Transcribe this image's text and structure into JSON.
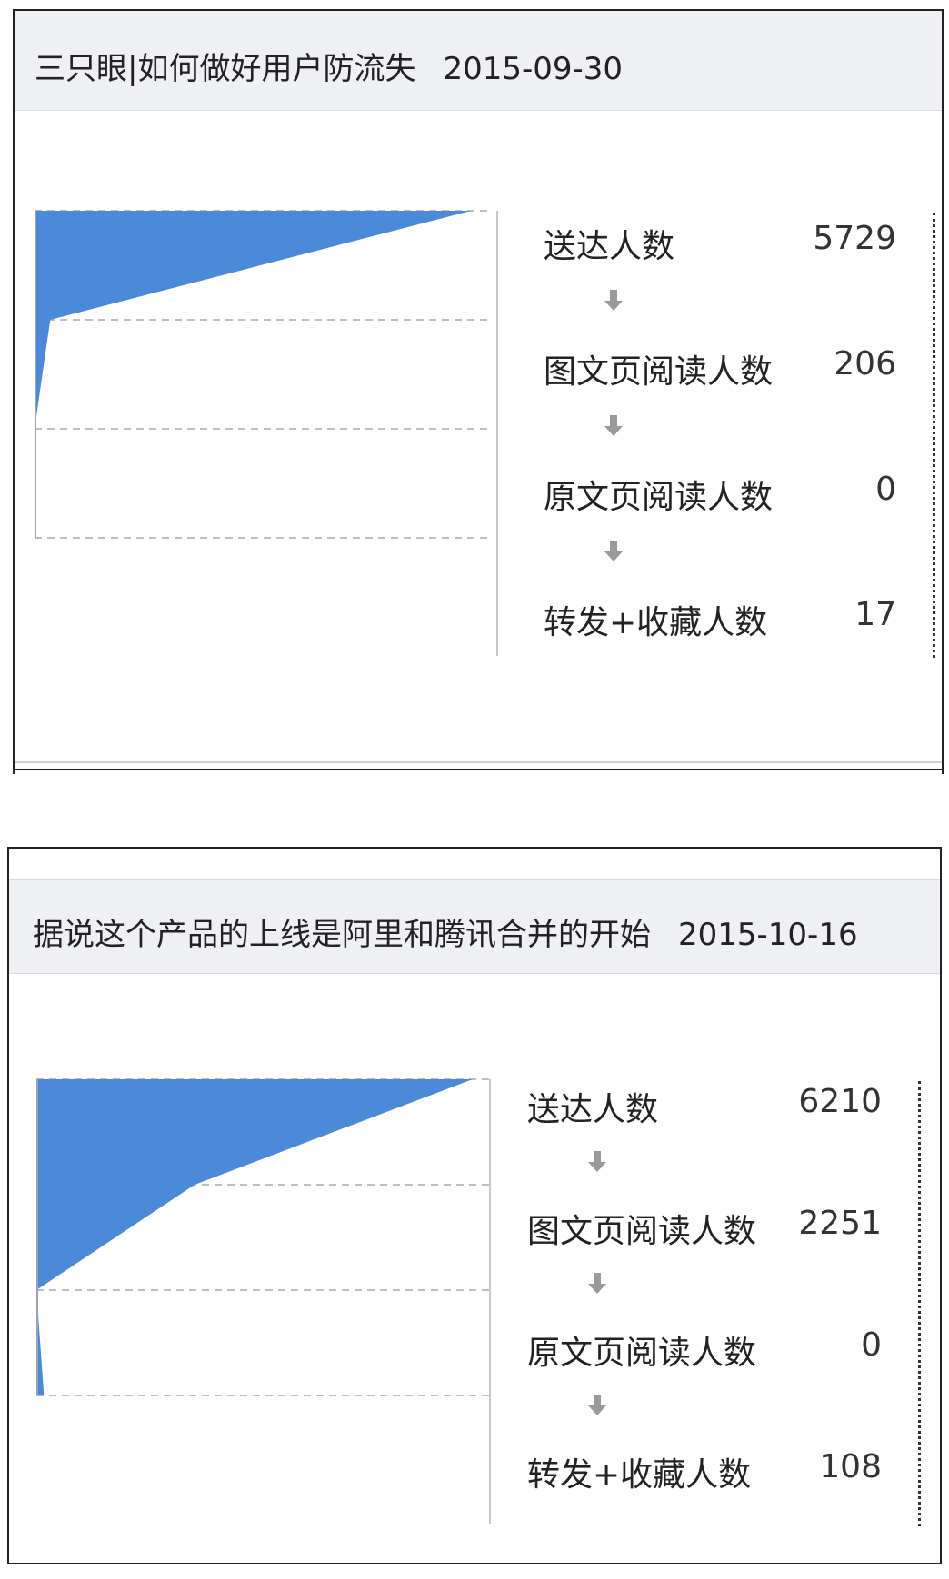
{
  "colors": {
    "funnel": "#4a8ad8",
    "header_bg": "#eff0f4"
  },
  "cards": [
    {
      "title": "三只眼|如何做好用户防流失",
      "date": "2015-09-30",
      "steps": [
        {
          "label": "送达人数",
          "value": "5729"
        },
        {
          "label": "图文页阅读人数",
          "value": "206"
        },
        {
          "label": "原文页阅读人数",
          "value": "0"
        },
        {
          "label": "转发+收藏人数",
          "value": "17"
        }
      ],
      "arrow_icon": "down-arrow-icon"
    },
    {
      "title": "据说这个产品的上线是阿里和腾讯合并的开始",
      "date": "2015-10-16",
      "steps": [
        {
          "label": "送达人数",
          "value": "6210"
        },
        {
          "label": "图文页阅读人数",
          "value": "2251"
        },
        {
          "label": "原文页阅读人数",
          "value": "0"
        },
        {
          "label": "转发+收藏人数",
          "value": "108"
        }
      ],
      "arrow_icon": "down-arrow-icon"
    }
  ],
  "chart_data": [
    {
      "type": "area",
      "title": "三只眼|如何做好用户防流失 2015-09-30",
      "categories": [
        "送达人数",
        "图文页阅读人数",
        "原文页阅读人数",
        "转发+收藏人数"
      ],
      "values": [
        5729,
        206,
        0,
        17
      ],
      "xlabel": "",
      "ylabel": "",
      "grid": true
    },
    {
      "type": "area",
      "title": "据说这个产品的上线是阿里和腾讯合并的开始 2015-10-16",
      "categories": [
        "送达人数",
        "图文页阅读人数",
        "原文页阅读人数",
        "转发+收藏人数"
      ],
      "values": [
        6210,
        2251,
        0,
        108
      ],
      "xlabel": "",
      "ylabel": "",
      "grid": true
    }
  ]
}
